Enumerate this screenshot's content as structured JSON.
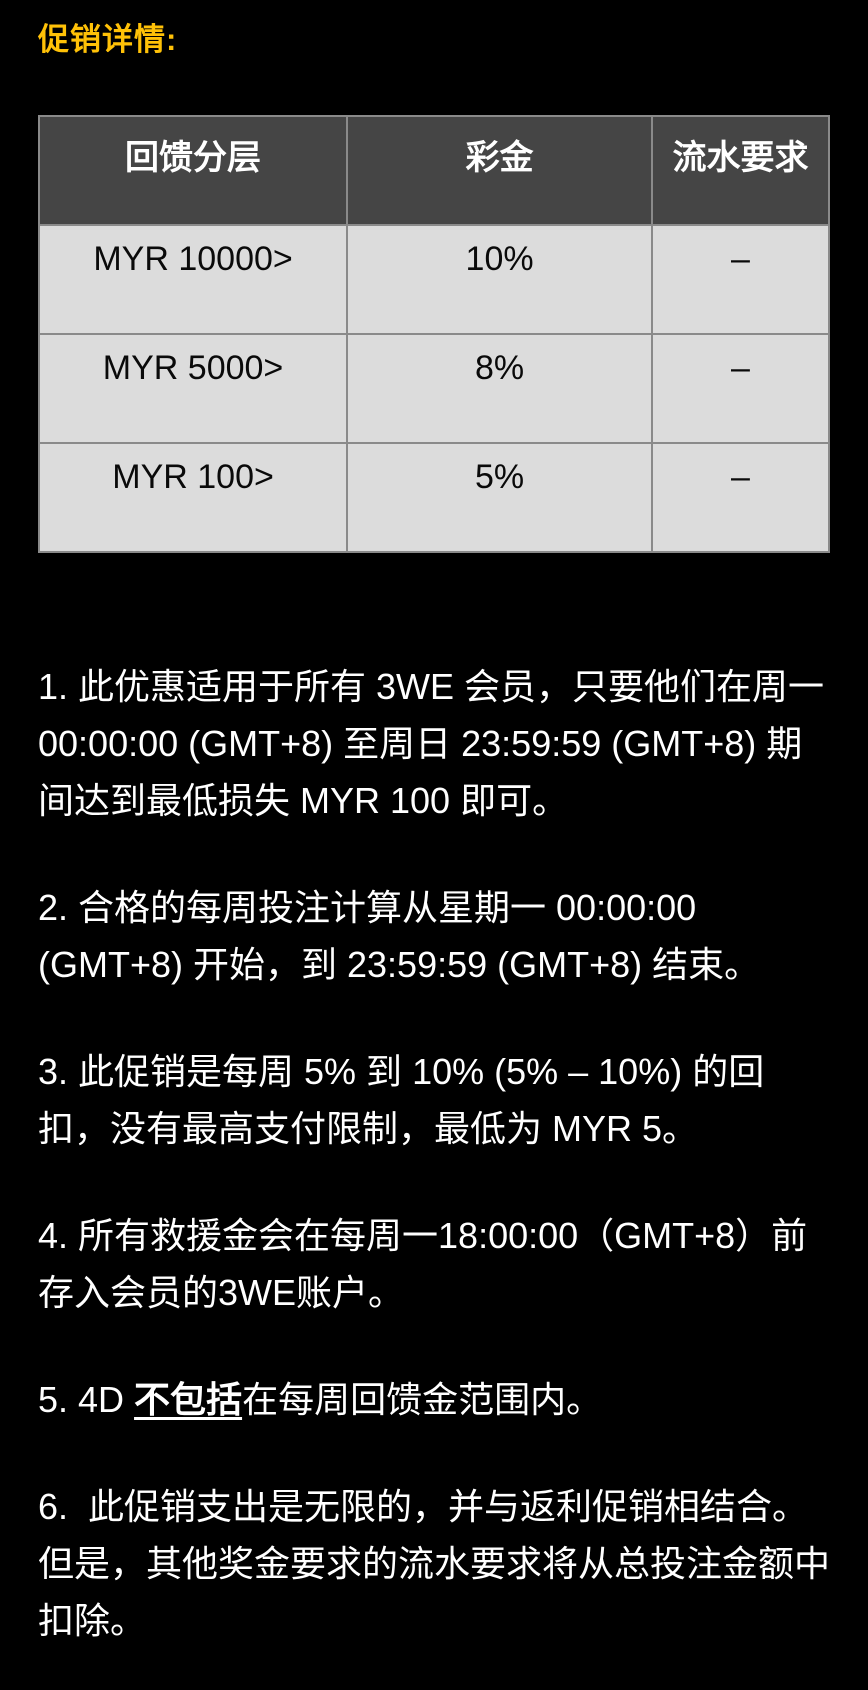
{
  "page": {
    "title": "促销详情:",
    "background_color": "#000000",
    "accent_color": "#FFC107",
    "body_text_color": "#ffffff"
  },
  "table": {
    "header_bg": "#454545",
    "header_text_color": "#ffffff",
    "row_bg": "#dcdcdc",
    "row_text_color": "#0a0a0a",
    "border_color": "#8a8a8a",
    "columns": [
      "回馈分层",
      "彩金",
      "流水要求"
    ],
    "rows": [
      {
        "tier": "MYR 10000>",
        "bonus": "10%",
        "turnover": "–"
      },
      {
        "tier": "MYR 5000>",
        "bonus": "8%",
        "turnover": "–"
      },
      {
        "tier": "MYR 100>",
        "bonus": "5%",
        "turnover": "–"
      }
    ]
  },
  "terms": {
    "items": [
      {
        "text": "1. 此优惠适用于所有 3WE 会员，只要他们在周一 00:00:00 (GMT+8) 至周日 23:59:59 (GMT+8) 期间达到最低损失 MYR 100 即可。"
      },
      {
        "text": "2. 合格的每周投注计算从星期一 00:00:00 (GMT+8) 开始，到 23:59:59 (GMT+8) 结束。"
      },
      {
        "text": "3. 此促销是每周 5% 到 10% (5% – 10%) 的回扣，没有最高支付限制，最低为 MYR 5。"
      },
      {
        "text": "4. 所有救援金会在每周一18:00:00（GMT+8）前存入会员的3WE账户。"
      },
      {
        "prefix": "5. 4D ",
        "emphasis": "不包括",
        "suffix": "在每周回馈金范围内。"
      },
      {
        "text": "6.  此促销支出是无限的，并与返利促销相结合。但是，其他奖金要求的流水要求将从总投注金额中扣除。"
      }
    ]
  }
}
